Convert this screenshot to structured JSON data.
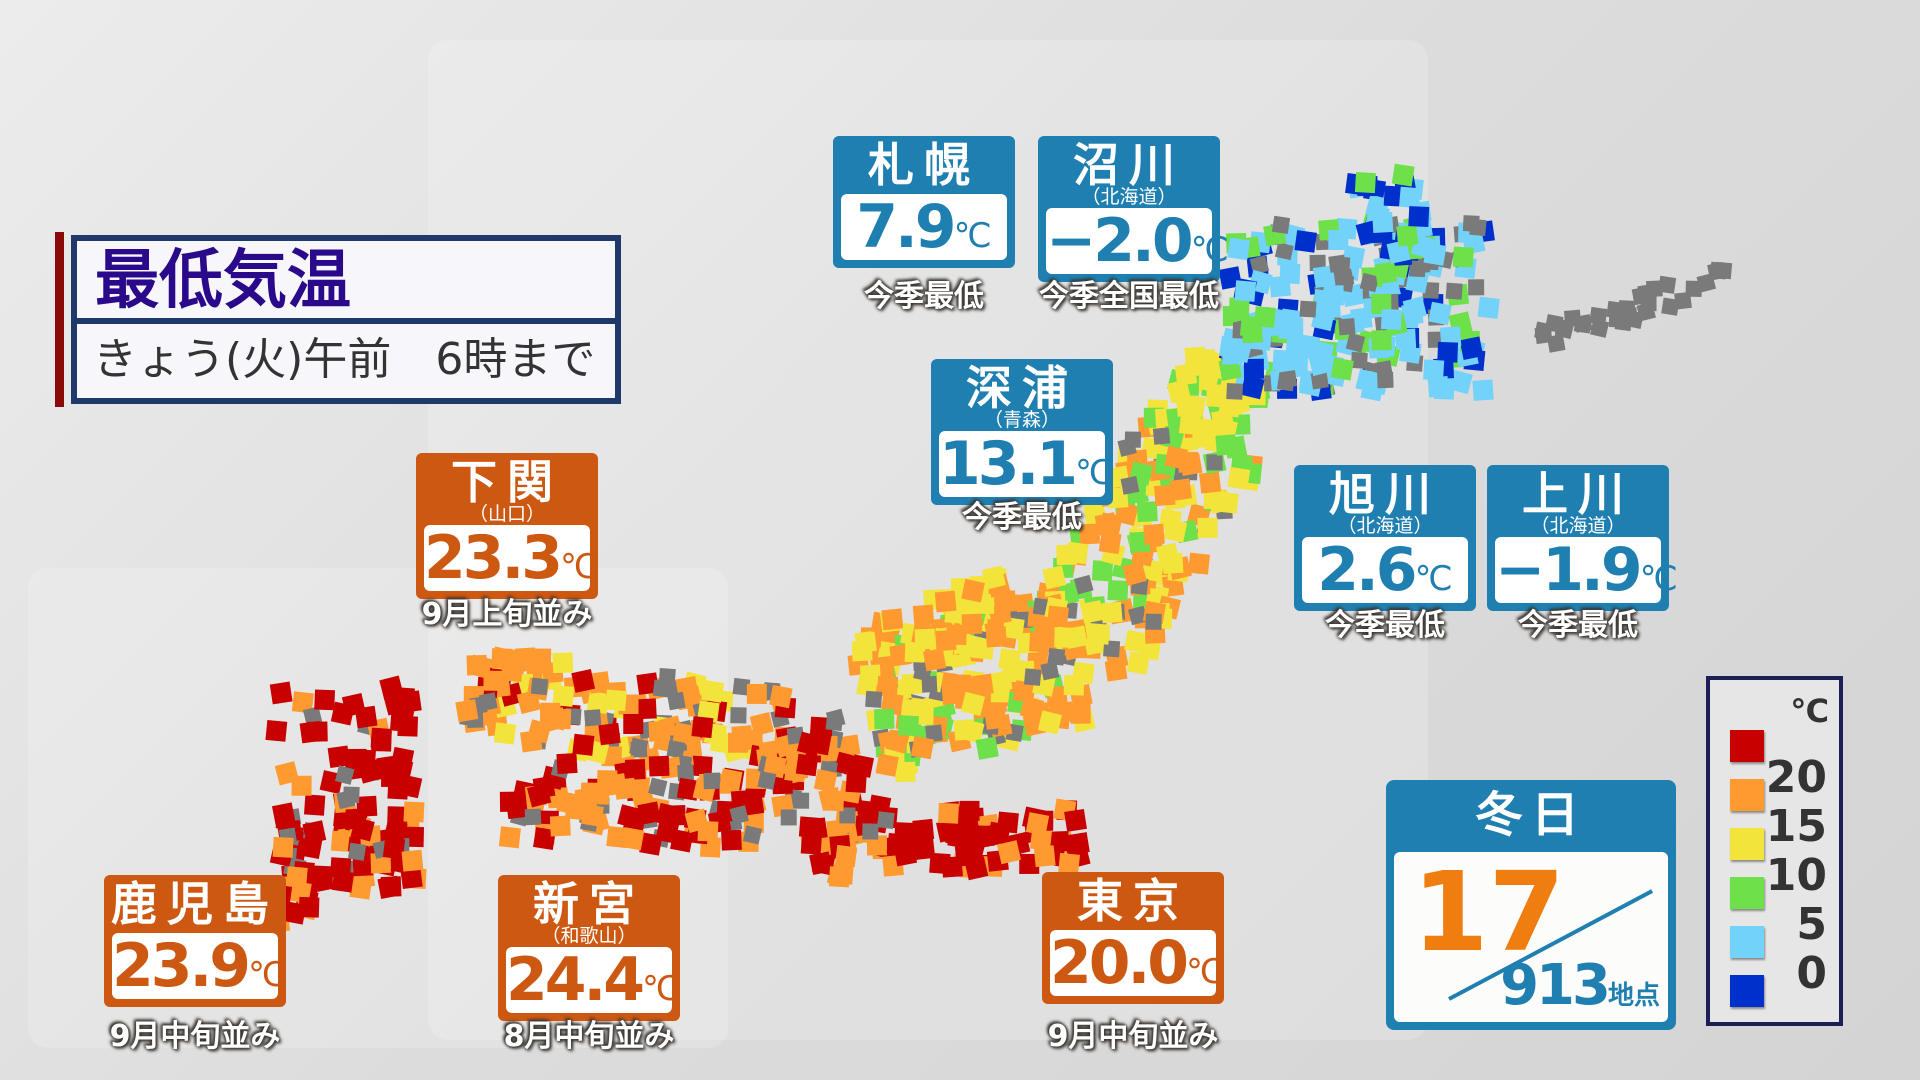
{
  "title": {
    "main": "最低気温",
    "sub": "きょう(火)午前　6時まで"
  },
  "colors": {
    "station_blue": "#1e7fb0",
    "station_orange": "#cc5812",
    "title_text": "#2a0a8a"
  },
  "stations": [
    {
      "name": "札幌",
      "sub": "",
      "value": "7.9",
      "unit": "℃",
      "note": "今季最低",
      "style": "blue"
    },
    {
      "name": "沼川",
      "sub": "（北海道）",
      "value": "−2.0",
      "unit": "℃",
      "note": "今季全国最低",
      "style": "blue"
    },
    {
      "name": "深浦",
      "sub": "（青森）",
      "value": "13.1",
      "unit": "℃",
      "note": "今季最低",
      "style": "blue"
    },
    {
      "name": "旭川",
      "sub": "（北海道）",
      "value": "2.6",
      "unit": "℃",
      "note": "今季最低",
      "style": "blue"
    },
    {
      "name": "上川",
      "sub": "（北海道）",
      "value": "−1.9",
      "unit": "℃",
      "note": "今季最低",
      "style": "blue"
    },
    {
      "name": "下関",
      "sub": "（山口）",
      "value": "23.3",
      "unit": "℃",
      "note": "9月上旬並み",
      "style": "orange"
    },
    {
      "name": "鹿児島",
      "sub": "",
      "value": "23.9",
      "unit": "℃",
      "note": "9月中旬並み",
      "style": "orange"
    },
    {
      "name": "新宮",
      "sub": "（和歌山）",
      "value": "24.4",
      "unit": "℃",
      "note": "8月中旬並み",
      "style": "orange"
    },
    {
      "name": "東京",
      "sub": "",
      "value": "20.0",
      "unit": "℃",
      "note": "9月中旬並み",
      "style": "orange"
    }
  ],
  "fuyubi": {
    "label": "冬日",
    "count": "17",
    "total": "913",
    "unit": "地点"
  },
  "legend": {
    "unit": "℃",
    "swatches": [
      "#c80000",
      "#ff9a30",
      "#f2e43a",
      "#6ee04a",
      "#72d2fa",
      "#0030cc"
    ],
    "labels": [
      "20",
      "15",
      "10",
      "5",
      "0"
    ]
  }
}
